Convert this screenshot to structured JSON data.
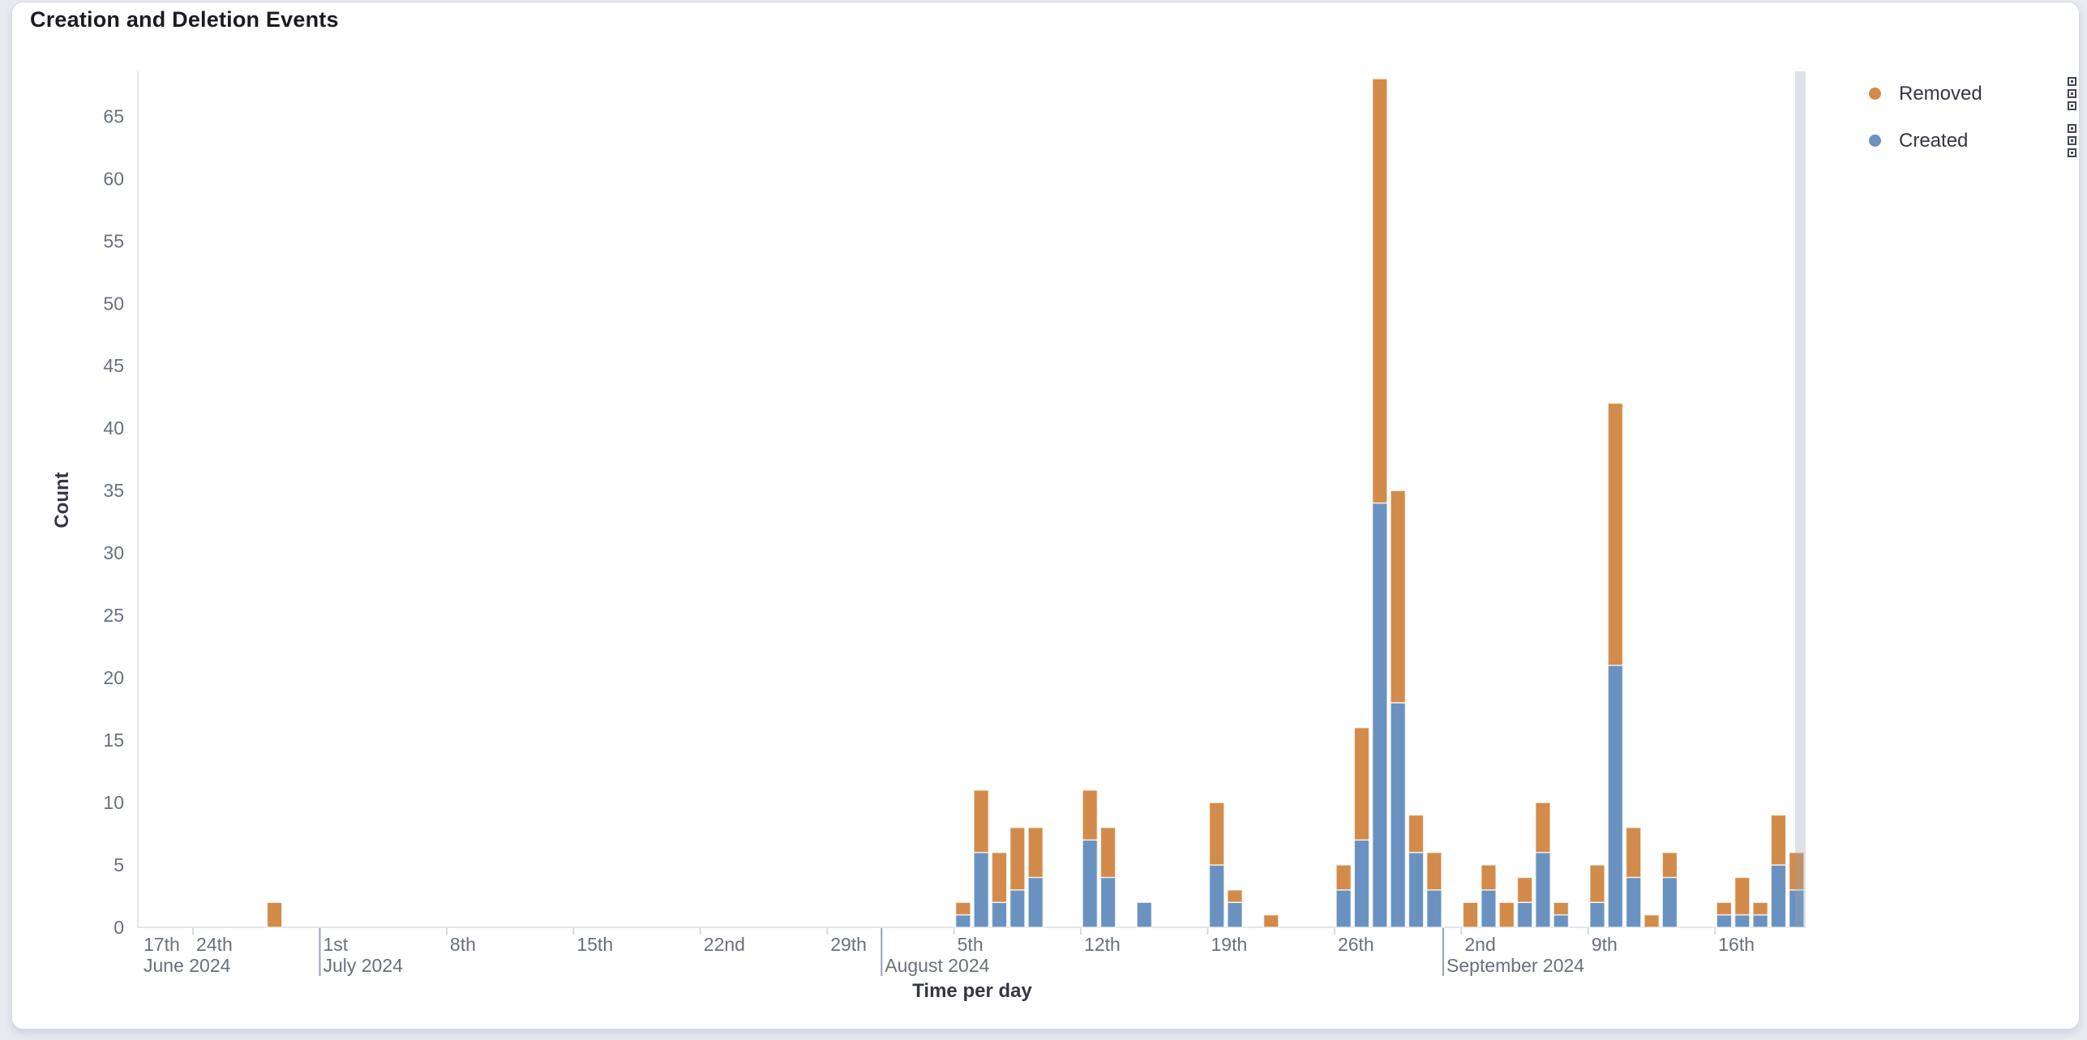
{
  "page": {
    "background": "#e9ebf1"
  },
  "panel": {
    "title": "Creation and Deletion Events"
  },
  "legend": {
    "items": [
      {
        "label": "Removed",
        "color": "#d28b4a"
      },
      {
        "label": "Created",
        "color": "#6992c1"
      }
    ]
  },
  "chart_data": {
    "type": "bar",
    "stacked": true,
    "title": "Creation and Deletion Events",
    "xlabel": "Time per day",
    "ylabel": "Count",
    "legend_position": "right",
    "grid": false,
    "x_domain": [
      "2024-06-21",
      "2024-09-21"
    ],
    "ylim": [
      0,
      68.4
    ],
    "y_ticks": [
      0,
      5,
      10,
      15,
      20,
      25,
      30,
      35,
      40,
      45,
      50,
      55,
      60,
      65
    ],
    "colors": {
      "Created": "#6992c1",
      "Removed": "#d28b4a"
    },
    "bar_stroke": "rgba(255,255,255,0.75)",
    "axis_line_color": "#e3e6ec",
    "tick_mark_color": "#d3dae6",
    "month_line_color": "#98a2b3",
    "tick_label_color": "#69707d",
    "partial_bucket_color": "rgba(152,162,179,0.32)",
    "x_ticks": [
      {
        "date": "2024-06-17",
        "label": "17th",
        "clamped": true
      },
      {
        "date": "2024-06-24",
        "label": "24th"
      },
      {
        "date": "2024-07-01",
        "label": "1st"
      },
      {
        "date": "2024-07-08",
        "label": "8th"
      },
      {
        "date": "2024-07-15",
        "label": "15th"
      },
      {
        "date": "2024-07-22",
        "label": "22nd"
      },
      {
        "date": "2024-07-29",
        "label": "29th"
      },
      {
        "date": "2024-08-05",
        "label": "5th"
      },
      {
        "date": "2024-08-12",
        "label": "12th"
      },
      {
        "date": "2024-08-19",
        "label": "19th"
      },
      {
        "date": "2024-08-26",
        "label": "26th"
      },
      {
        "date": "2024-09-02",
        "label": "2nd"
      },
      {
        "date": "2024-09-09",
        "label": "9th"
      },
      {
        "date": "2024-09-16",
        "label": "16th"
      }
    ],
    "month_markers": [
      {
        "date": "2024-06-17",
        "label": "June 2024",
        "line": false,
        "clamped": true
      },
      {
        "date": "2024-07-01",
        "label": "July 2024",
        "line": true
      },
      {
        "date": "2024-08-01",
        "label": "August 2024",
        "line": true
      },
      {
        "date": "2024-09-01",
        "label": "September 2024",
        "line": true
      }
    ],
    "partial_bucket_highlight": {
      "from": "2024-09-20T10:00:00Z",
      "to": "2024-09-21T00:00:00Z"
    },
    "series": [
      {
        "name": "Created",
        "stack_order": 0
      },
      {
        "name": "Removed",
        "stack_order": 1
      }
    ],
    "points": [
      {
        "date": "2024-06-28",
        "created": 0,
        "removed": 2
      },
      {
        "date": "2024-08-05",
        "created": 1,
        "removed": 1
      },
      {
        "date": "2024-08-06",
        "created": 6,
        "removed": 5
      },
      {
        "date": "2024-08-07",
        "created": 2,
        "removed": 4
      },
      {
        "date": "2024-08-08",
        "created": 3,
        "removed": 5
      },
      {
        "date": "2024-08-09",
        "created": 4,
        "removed": 4
      },
      {
        "date": "2024-08-12",
        "created": 7,
        "removed": 4
      },
      {
        "date": "2024-08-13",
        "created": 4,
        "removed": 4
      },
      {
        "date": "2024-08-15",
        "created": 2,
        "removed": 0
      },
      {
        "date": "2024-08-19",
        "created": 5,
        "removed": 5
      },
      {
        "date": "2024-08-20",
        "created": 2,
        "removed": 1
      },
      {
        "date": "2024-08-22",
        "created": 0,
        "removed": 1
      },
      {
        "date": "2024-08-26",
        "created": 3,
        "removed": 2
      },
      {
        "date": "2024-08-27",
        "created": 7,
        "removed": 9
      },
      {
        "date": "2024-08-28",
        "created": 34,
        "removed": 34
      },
      {
        "date": "2024-08-29",
        "created": 18,
        "removed": 17
      },
      {
        "date": "2024-08-30",
        "created": 6,
        "removed": 3
      },
      {
        "date": "2024-08-31",
        "created": 3,
        "removed": 3
      },
      {
        "date": "2024-09-02",
        "created": 0,
        "removed": 2
      },
      {
        "date": "2024-09-03",
        "created": 3,
        "removed": 2
      },
      {
        "date": "2024-09-04",
        "created": 0,
        "removed": 2
      },
      {
        "date": "2024-09-05",
        "created": 2,
        "removed": 2
      },
      {
        "date": "2024-09-06",
        "created": 6,
        "removed": 4
      },
      {
        "date": "2024-09-07",
        "created": 1,
        "removed": 1
      },
      {
        "date": "2024-09-09",
        "created": 2,
        "removed": 3
      },
      {
        "date": "2024-09-10",
        "created": 21,
        "removed": 21
      },
      {
        "date": "2024-09-11",
        "created": 4,
        "removed": 4
      },
      {
        "date": "2024-09-12",
        "created": 0,
        "removed": 1
      },
      {
        "date": "2024-09-13",
        "created": 4,
        "removed": 2
      },
      {
        "date": "2024-09-16",
        "created": 1,
        "removed": 1
      },
      {
        "date": "2024-09-17",
        "created": 1,
        "removed": 3
      },
      {
        "date": "2024-09-18",
        "created": 1,
        "removed": 1
      },
      {
        "date": "2024-09-19",
        "created": 5,
        "removed": 4
      },
      {
        "date": "2024-09-20",
        "created": 3,
        "removed": 3
      }
    ]
  }
}
